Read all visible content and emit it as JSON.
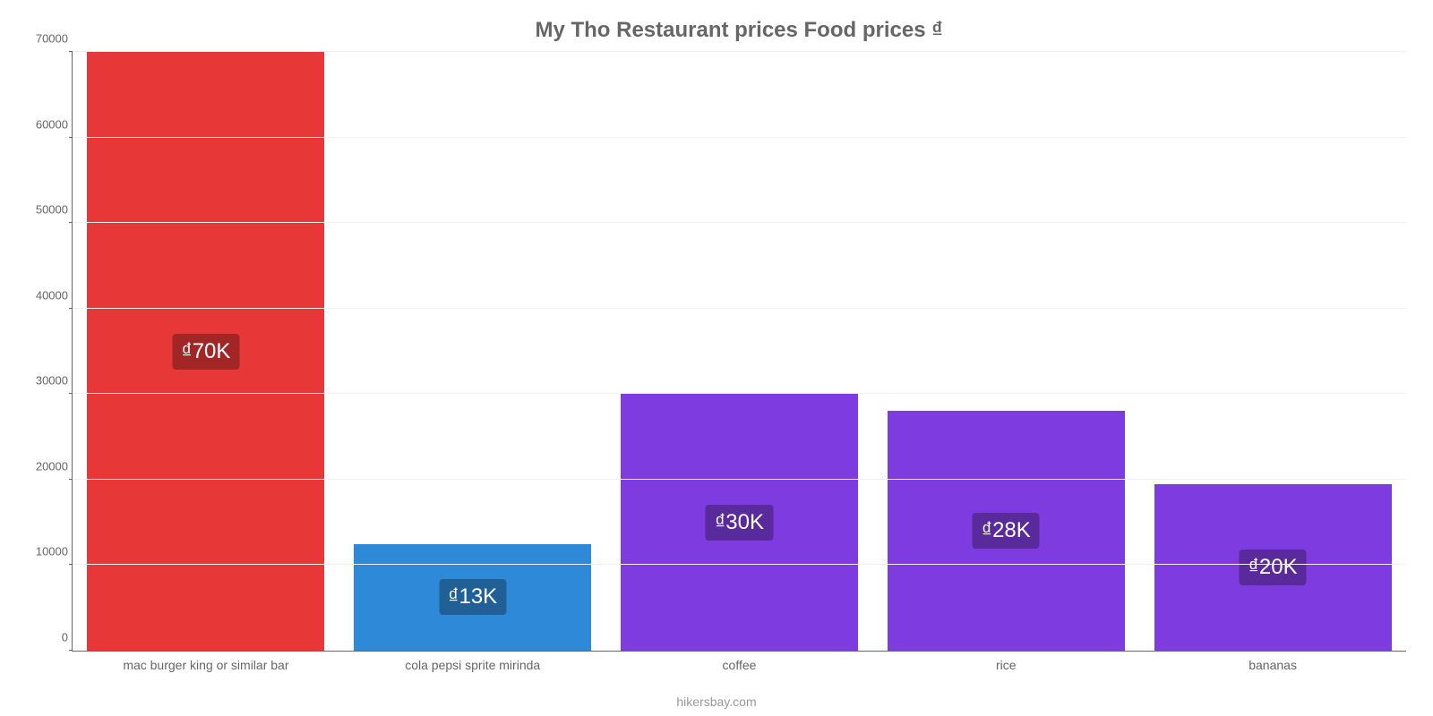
{
  "chart": {
    "type": "bar",
    "title": "My Tho Restaurant prices Food prices ₫",
    "title_color": "#666666",
    "title_fontsize": 24,
    "source": "hikersbay.com",
    "source_color": "#999999",
    "background_color": "#ffffff",
    "grid_color": "#f0f0f0",
    "axis_color": "#666666",
    "tick_label_color": "#666666",
    "tick_fontsize": 13,
    "xtick_fontsize": 14,
    "ylim_min": 0,
    "ylim_max": 70000,
    "ytick_step": 10000,
    "yticks": [
      {
        "value": 0,
        "label": "0"
      },
      {
        "value": 10000,
        "label": "10000"
      },
      {
        "value": 20000,
        "label": "20000"
      },
      {
        "value": 30000,
        "label": "30000"
      },
      {
        "value": 40000,
        "label": "40000"
      },
      {
        "value": 50000,
        "label": "50000"
      },
      {
        "value": 60000,
        "label": "60000"
      },
      {
        "value": 70000,
        "label": "70000"
      }
    ],
    "bar_width_pct": 89,
    "bar_label_fontsize": 24,
    "bar_label_text_color": "#ffffff",
    "bars": [
      {
        "category": "mac burger king or similar bar",
        "value": 70000,
        "display_label": "₫70K",
        "bar_color": "#e83737",
        "label_bg_color": "#a22626"
      },
      {
        "category": "cola pepsi sprite mirinda",
        "value": 12500,
        "display_label": "₫13K",
        "bar_color": "#2e8ad8",
        "label_bg_color": "#206097"
      },
      {
        "category": "coffee",
        "value": 30000,
        "display_label": "₫30K",
        "bar_color": "#7e3ce0",
        "label_bg_color": "#582a9c"
      },
      {
        "category": "rice",
        "value": 28000,
        "display_label": "₫28K",
        "bar_color": "#7e3ce0",
        "label_bg_color": "#582a9c"
      },
      {
        "category": "bananas",
        "value": 19500,
        "display_label": "₫20K",
        "bar_color": "#7e3ce0",
        "label_bg_color": "#582a9c"
      }
    ]
  }
}
